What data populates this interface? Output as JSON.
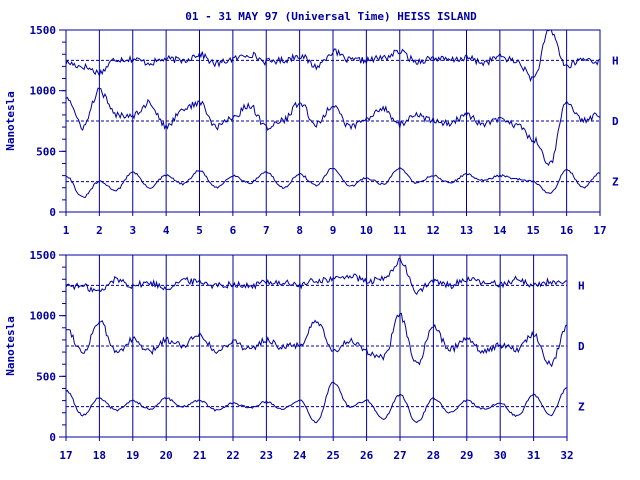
{
  "header": {
    "title": "01 - 31 MAY 97 (Universal Time) HEISS ISLAND"
  },
  "colors": {
    "axis": "#0000a0",
    "trace": "#0000a0",
    "label": "#0000a0",
    "background": "#ffffff"
  },
  "chart_data": [
    {
      "type": "line",
      "title": "01 - 31 MAY 97 (Universal Time) HEISS ISLAND",
      "ylabel": "Nanotesla",
      "xlim": [
        1,
        17
      ],
      "ylim": [
        0,
        1500
      ],
      "x_ticks": [
        "1",
        "2",
        "3",
        "4",
        "5",
        "6",
        "7",
        "8",
        "9",
        "10",
        "11",
        "12",
        "13",
        "14",
        "15",
        "16",
        "17"
      ],
      "y_ticks": [
        "0",
        "500",
        "1000",
        "1500"
      ],
      "grid": "vertical day lines",
      "baselines": [
        1250,
        750,
        250
      ],
      "series": [
        {
          "name": "H",
          "baseline": 1250,
          "x": [
            1,
            1.5,
            2,
            2.5,
            3,
            3.5,
            4,
            4.5,
            5,
            5.5,
            6,
            6.5,
            7,
            7.5,
            8,
            8.5,
            9,
            9.5,
            10,
            10.5,
            11,
            11.5,
            12,
            12.5,
            13,
            13.5,
            14,
            14.5,
            15,
            15.5,
            16,
            16.5,
            17
          ],
          "values": [
            1230,
            1200,
            1150,
            1260,
            1260,
            1230,
            1260,
            1250,
            1300,
            1220,
            1260,
            1300,
            1240,
            1250,
            1290,
            1200,
            1320,
            1250,
            1250,
            1270,
            1320,
            1240,
            1270,
            1250,
            1270,
            1230,
            1280,
            1240,
            1100,
            1500,
            1200,
            1260,
            1240
          ]
        },
        {
          "name": "D",
          "baseline": 750,
          "x": [
            1,
            1.5,
            2,
            2.5,
            3,
            3.5,
            4,
            4.5,
            5,
            5.5,
            6,
            6.5,
            7,
            7.5,
            8,
            8.5,
            9,
            9.5,
            10,
            10.5,
            11,
            11.5,
            12,
            12.5,
            13,
            13.5,
            14,
            14.5,
            15,
            15.5,
            16,
            16.5,
            17
          ],
          "values": [
            950,
            700,
            1000,
            800,
            800,
            900,
            700,
            850,
            900,
            700,
            780,
            880,
            700,
            750,
            900,
            720,
            880,
            700,
            760,
            860,
            720,
            800,
            750,
            730,
            800,
            720,
            760,
            720,
            600,
            400,
            900,
            760,
            800
          ]
        },
        {
          "name": "Z",
          "baseline": 250,
          "x": [
            1,
            1.5,
            2,
            2.5,
            3,
            3.5,
            4,
            4.5,
            5,
            5.5,
            6,
            6.5,
            7,
            7.5,
            8,
            8.5,
            9,
            9.5,
            10,
            10.5,
            11,
            11.5,
            12,
            12.5,
            13,
            13.5,
            14,
            14.5,
            15,
            15.5,
            16,
            16.5,
            17
          ],
          "values": [
            300,
            120,
            250,
            180,
            330,
            200,
            300,
            230,
            340,
            200,
            300,
            240,
            330,
            200,
            310,
            220,
            360,
            210,
            280,
            230,
            360,
            240,
            300,
            240,
            310,
            260,
            300,
            270,
            250,
            150,
            350,
            200,
            320
          ]
        }
      ]
    },
    {
      "type": "line",
      "title": "",
      "ylabel": "Nanotesla",
      "xlim": [
        17,
        32
      ],
      "ylim": [
        0,
        1500
      ],
      "x_ticks": [
        "17",
        "18",
        "19",
        "20",
        "21",
        "22",
        "23",
        "24",
        "25",
        "26",
        "27",
        "28",
        "29",
        "30",
        "31",
        "32"
      ],
      "y_ticks": [
        "0",
        "500",
        "1000",
        "1500"
      ],
      "grid": "vertical day lines",
      "baselines": [
        1250,
        750,
        250
      ],
      "series": [
        {
          "name": "H",
          "baseline": 1250,
          "x": [
            17,
            17.5,
            18,
            18.5,
            19,
            19.5,
            20,
            20.5,
            21,
            21.5,
            22,
            22.5,
            23,
            23.5,
            24,
            24.5,
            25,
            25.5,
            26,
            26.5,
            27,
            27.5,
            28,
            28.5,
            29,
            29.5,
            30,
            30.5,
            31,
            31.5,
            32
          ],
          "values": [
            1250,
            1240,
            1200,
            1300,
            1250,
            1270,
            1230,
            1290,
            1280,
            1250,
            1260,
            1240,
            1280,
            1270,
            1250,
            1290,
            1300,
            1330,
            1280,
            1300,
            1450,
            1200,
            1280,
            1250,
            1300,
            1270,
            1260,
            1300,
            1250,
            1280,
            1260
          ]
        },
        {
          "name": "D",
          "baseline": 750,
          "x": [
            17,
            17.5,
            18,
            18.5,
            19,
            19.5,
            20,
            20.5,
            21,
            21.5,
            22,
            22.5,
            23,
            23.5,
            24,
            24.5,
            25,
            25.5,
            26,
            26.5,
            27,
            27.5,
            28,
            28.5,
            29,
            29.5,
            30,
            30.5,
            31,
            31.5,
            32
          ],
          "values": [
            900,
            700,
            950,
            700,
            800,
            700,
            800,
            760,
            850,
            700,
            790,
            720,
            800,
            740,
            760,
            950,
            700,
            800,
            700,
            650,
            1000,
            600,
            900,
            720,
            820,
            700,
            760,
            720,
            850,
            600,
            900
          ]
        },
        {
          "name": "Z",
          "baseline": 250,
          "x": [
            17,
            17.5,
            18,
            18.5,
            19,
            19.5,
            20,
            20.5,
            21,
            21.5,
            22,
            22.5,
            23,
            23.5,
            24,
            24.5,
            25,
            25.5,
            26,
            26.5,
            27,
            27.5,
            28,
            28.5,
            29,
            29.5,
            30,
            30.5,
            31,
            31.5,
            32
          ],
          "values": [
            380,
            180,
            320,
            220,
            300,
            230,
            320,
            250,
            300,
            220,
            280,
            240,
            290,
            230,
            300,
            120,
            450,
            250,
            300,
            150,
            350,
            120,
            320,
            200,
            300,
            230,
            280,
            170,
            350,
            180,
            400
          ]
        }
      ]
    }
  ]
}
